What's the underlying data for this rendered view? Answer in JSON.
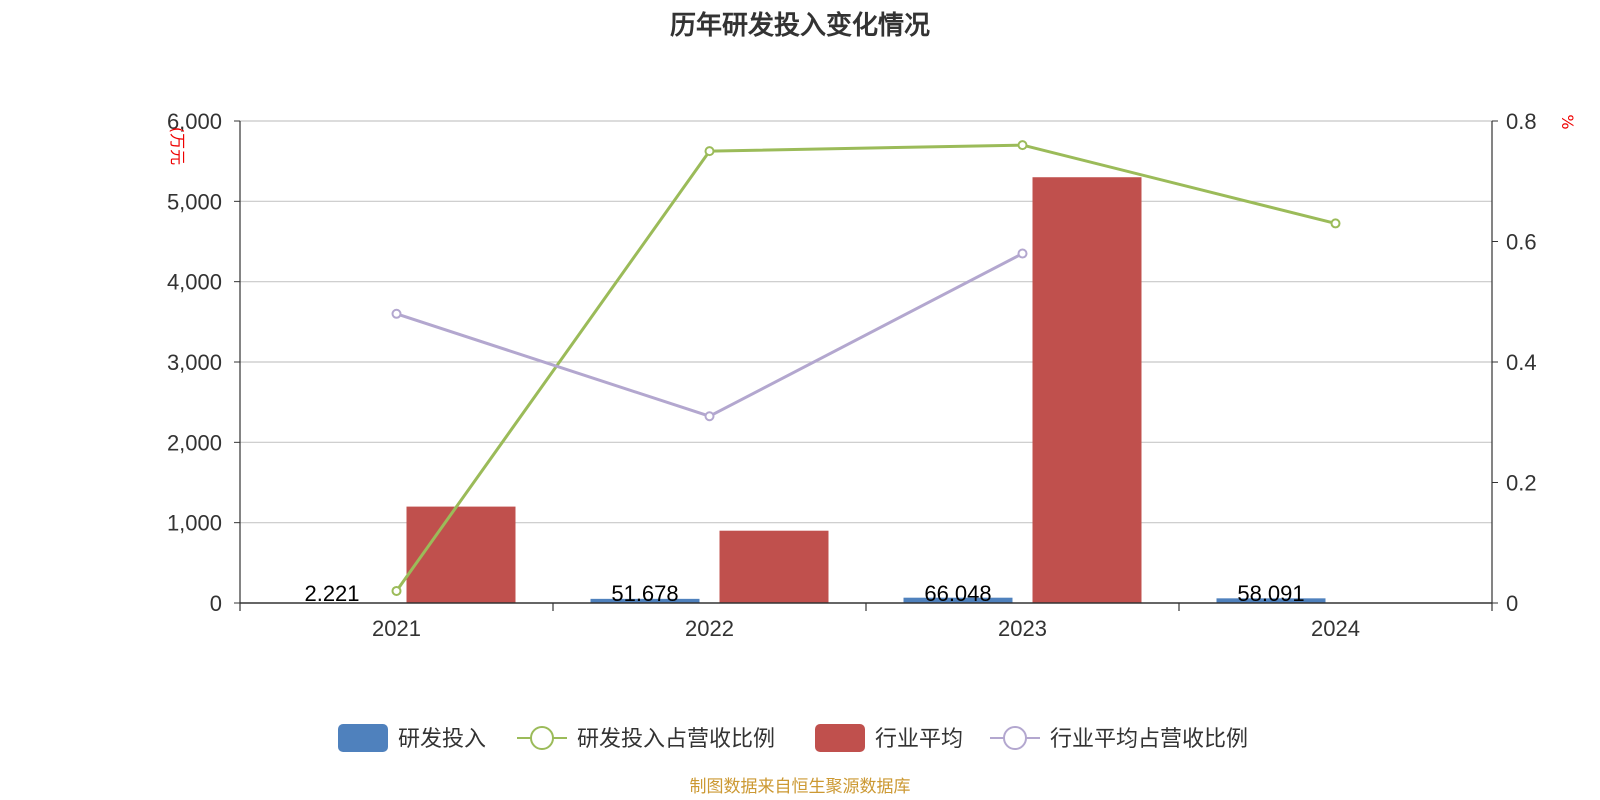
{
  "chart_data": {
    "type": "bar",
    "title": "历年研发投入变化情况",
    "categories": [
      "2021",
      "2022",
      "2023",
      "2024"
    ],
    "y_left": {
      "unit": "(万元",
      "ylim": [
        0,
        6000
      ],
      "ticks": [
        "0",
        "1,000",
        "2,000",
        "3,000",
        "4,000",
        "5,000",
        "6,000"
      ]
    },
    "y_right": {
      "unit": "%",
      "ylim": [
        0,
        0.8
      ],
      "ticks": [
        "0",
        "0.2",
        "0.4",
        "0.6",
        "0.8"
      ]
    },
    "series": [
      {
        "name": "研发投入",
        "type": "bar",
        "axis": "left",
        "color": "#4f81bd",
        "values": [
          2.221,
          51.678,
          66.048,
          58.091
        ],
        "labels": [
          "2.221",
          "51.678",
          "66.048",
          "58.091"
        ]
      },
      {
        "name": "研发投入占营收比例",
        "type": "line",
        "axis": "right",
        "color": "#9bbb59",
        "values": [
          0.02,
          0.75,
          0.76,
          0.63
        ]
      },
      {
        "name": "行业平均",
        "type": "bar",
        "axis": "left",
        "color": "#c0504d",
        "values": [
          1200,
          900,
          5300,
          null
        ]
      },
      {
        "name": "行业平均占营收比例",
        "type": "line",
        "axis": "right",
        "color": "#b3a7cf",
        "values": [
          0.48,
          0.31,
          0.58,
          null
        ]
      }
    ],
    "grid": true,
    "legend": "bottom",
    "source": "制图数据来自恒生聚源数据库",
    "source_color": "#cc9933"
  }
}
